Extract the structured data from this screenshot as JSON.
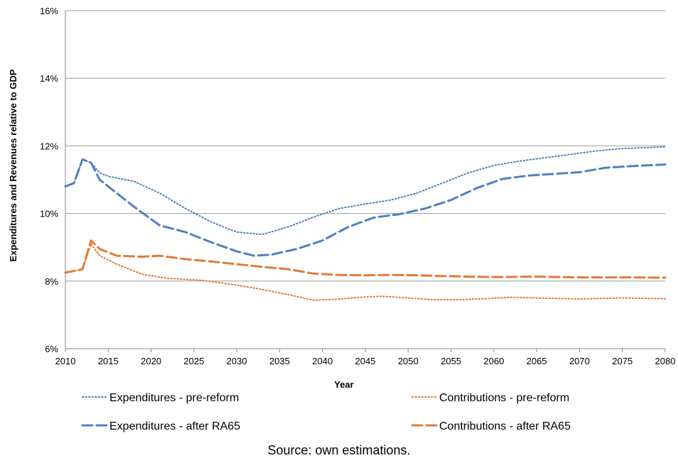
{
  "caption": "Source: own estimations.",
  "chart_data": {
    "type": "line",
    "title": "",
    "xlabel": "Year",
    "ylabel": "Expenditures and Revenues relative to GDP",
    "xlim": [
      2010,
      2080
    ],
    "ylim": [
      6,
      16
    ],
    "x_ticks": [
      "2010",
      "2015",
      "2020",
      "2025",
      "2030",
      "2035",
      "2040",
      "2045",
      "2050",
      "2055",
      "2060",
      "2065",
      "2070",
      "2075",
      "2080"
    ],
    "y_ticks": [
      "6%",
      "8%",
      "10%",
      "12%",
      "14%",
      "16%"
    ],
    "grid": "horizontal",
    "legend_position": "bottom",
    "series": [
      {
        "name": "Expenditures - pre-reform",
        "color": "#4F81BD",
        "style": "dotted",
        "points": [
          [
            2010,
            10.8
          ],
          [
            2011,
            10.9
          ],
          [
            2012,
            11.6
          ],
          [
            2013,
            11.5
          ],
          [
            2014,
            11.2
          ],
          [
            2015,
            11.1
          ],
          [
            2018,
            10.95
          ],
          [
            2021,
            10.6
          ],
          [
            2024,
            10.15
          ],
          [
            2027,
            9.75
          ],
          [
            2030,
            9.45
          ],
          [
            2033,
            9.38
          ],
          [
            2036,
            9.6
          ],
          [
            2039,
            9.9
          ],
          [
            2042,
            10.15
          ],
          [
            2045,
            10.28
          ],
          [
            2048,
            10.4
          ],
          [
            2051,
            10.6
          ],
          [
            2054,
            10.9
          ],
          [
            2057,
            11.2
          ],
          [
            2060,
            11.42
          ],
          [
            2063,
            11.55
          ],
          [
            2066,
            11.65
          ],
          [
            2069,
            11.75
          ],
          [
            2072,
            11.85
          ],
          [
            2075,
            11.92
          ],
          [
            2078,
            11.95
          ],
          [
            2080,
            11.97
          ]
        ]
      },
      {
        "name": "Contributions - pre-reform",
        "color": "#E07B39",
        "style": "dotted",
        "points": [
          [
            2010,
            8.25
          ],
          [
            2012,
            8.35
          ],
          [
            2013,
            9.1
          ],
          [
            2014,
            8.75
          ],
          [
            2016,
            8.5
          ],
          [
            2019,
            8.2
          ],
          [
            2022,
            8.08
          ],
          [
            2026,
            8.02
          ],
          [
            2030,
            7.88
          ],
          [
            2033,
            7.75
          ],
          [
            2036,
            7.6
          ],
          [
            2039,
            7.43
          ],
          [
            2042,
            7.47
          ],
          [
            2045,
            7.53
          ],
          [
            2047,
            7.55
          ],
          [
            2050,
            7.5
          ],
          [
            2053,
            7.45
          ],
          [
            2056,
            7.45
          ],
          [
            2059,
            7.48
          ],
          [
            2062,
            7.52
          ],
          [
            2065,
            7.5
          ],
          [
            2070,
            7.47
          ],
          [
            2075,
            7.5
          ],
          [
            2080,
            7.48
          ]
        ]
      },
      {
        "name": "Expenditures - after RA65",
        "color": "#4F81BD",
        "style": "dashed",
        "points": [
          [
            2010,
            10.8
          ],
          [
            2011,
            10.9
          ],
          [
            2012,
            11.6
          ],
          [
            2013,
            11.5
          ],
          [
            2014,
            11.0
          ],
          [
            2016,
            10.6
          ],
          [
            2018,
            10.2
          ],
          [
            2021,
            9.65
          ],
          [
            2024,
            9.45
          ],
          [
            2027,
            9.15
          ],
          [
            2030,
            8.88
          ],
          [
            2032,
            8.75
          ],
          [
            2034,
            8.78
          ],
          [
            2037,
            8.95
          ],
          [
            2040,
            9.2
          ],
          [
            2043,
            9.6
          ],
          [
            2046,
            9.88
          ],
          [
            2049,
            9.98
          ],
          [
            2052,
            10.15
          ],
          [
            2055,
            10.4
          ],
          [
            2058,
            10.75
          ],
          [
            2061,
            11.02
          ],
          [
            2064,
            11.12
          ],
          [
            2067,
            11.17
          ],
          [
            2070,
            11.22
          ],
          [
            2073,
            11.35
          ],
          [
            2076,
            11.4
          ],
          [
            2080,
            11.45
          ]
        ]
      },
      {
        "name": "Contributions - after RA65",
        "color": "#E07B39",
        "style": "dashed",
        "points": [
          [
            2010,
            8.25
          ],
          [
            2012,
            8.35
          ],
          [
            2013,
            9.2
          ],
          [
            2014,
            8.95
          ],
          [
            2016,
            8.75
          ],
          [
            2019,
            8.72
          ],
          [
            2021,
            8.75
          ],
          [
            2024,
            8.65
          ],
          [
            2027,
            8.58
          ],
          [
            2030,
            8.5
          ],
          [
            2033,
            8.42
          ],
          [
            2036,
            8.35
          ],
          [
            2039,
            8.22
          ],
          [
            2042,
            8.18
          ],
          [
            2045,
            8.17
          ],
          [
            2048,
            8.18
          ],
          [
            2051,
            8.17
          ],
          [
            2054,
            8.15
          ],
          [
            2057,
            8.13
          ],
          [
            2060,
            8.12
          ],
          [
            2065,
            8.13
          ],
          [
            2070,
            8.11
          ],
          [
            2075,
            8.11
          ],
          [
            2080,
            8.1
          ]
        ]
      }
    ]
  }
}
